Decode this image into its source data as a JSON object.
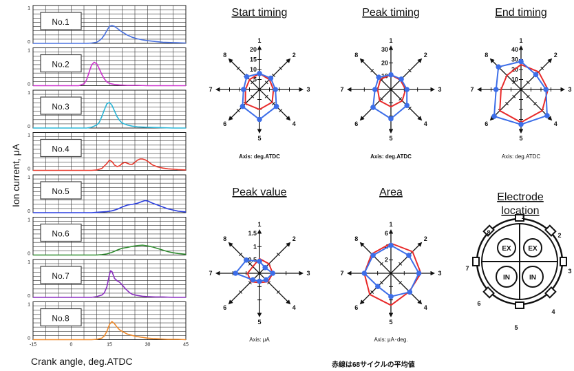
{
  "left_panel": {
    "ylabel": "Ion current, μA",
    "xlabel": "Crank angle, deg.ATDC",
    "x_ticks": [
      "-15",
      "0",
      "15",
      "30",
      "45"
    ],
    "y_tick_top": "1",
    "y_tick_bottom": "0"
  },
  "chart_data": [
    {
      "type": "line",
      "title": "Ion current traces",
      "xlim": [
        -15,
        45
      ],
      "ylim": [
        0,
        1
      ],
      "series": [
        {
          "name": "No.1",
          "color": "#4a72e0",
          "x": [
            -15,
            6,
            8,
            10,
            11,
            12,
            13,
            14,
            15,
            16,
            17,
            18,
            19,
            20,
            22,
            24,
            26,
            28,
            30,
            33,
            36,
            40,
            45
          ],
          "y": [
            0,
            0,
            0.01,
            0.03,
            0.07,
            0.13,
            0.22,
            0.34,
            0.45,
            0.47,
            0.45,
            0.4,
            0.35,
            0.3,
            0.22,
            0.16,
            0.12,
            0.09,
            0.07,
            0.05,
            0.03,
            0.02,
            0.01
          ]
        },
        {
          "name": "No.2",
          "color": "#cc33cc",
          "x": [
            -15,
            3,
            5,
            6,
            7,
            8,
            9,
            10,
            11,
            12,
            13,
            14,
            15,
            17,
            19,
            22,
            26,
            30,
            45
          ],
          "y": [
            0,
            0,
            0.05,
            0.15,
            0.35,
            0.55,
            0.62,
            0.58,
            0.45,
            0.3,
            0.18,
            0.1,
            0.06,
            0.03,
            0.02,
            0.01,
            0.01,
            0,
            0
          ]
        },
        {
          "name": "No.3",
          "color": "#2ab5d6",
          "x": [
            -15,
            6,
            8,
            10,
            11,
            12,
            13,
            14,
            15,
            16,
            17,
            18,
            19,
            20,
            22,
            24,
            26,
            30,
            35,
            40,
            45
          ],
          "y": [
            0,
            0,
            0.02,
            0.08,
            0.15,
            0.3,
            0.48,
            0.64,
            0.68,
            0.6,
            0.45,
            0.3,
            0.2,
            0.13,
            0.08,
            0.05,
            0.03,
            0.02,
            0.01,
            0,
            0
          ]
        },
        {
          "name": "No.4",
          "color": "#e83a2e",
          "x": [
            -15,
            8,
            10,
            12,
            14,
            15,
            16,
            17,
            18,
            19,
            20,
            21,
            22,
            23,
            24,
            25,
            26,
            27,
            28,
            29,
            30,
            31,
            32,
            34,
            36,
            38,
            40,
            42,
            45
          ],
          "y": [
            0,
            0,
            0.01,
            0.05,
            0.18,
            0.27,
            0.23,
            0.14,
            0.1,
            0.12,
            0.18,
            0.21,
            0.19,
            0.16,
            0.16,
            0.21,
            0.27,
            0.3,
            0.3,
            0.28,
            0.24,
            0.19,
            0.14,
            0.09,
            0.06,
            0.04,
            0.03,
            0.02,
            0.01
          ]
        },
        {
          "name": "No.5",
          "color": "#2a3ee0",
          "x": [
            -15,
            8,
            10,
            12,
            14,
            16,
            18,
            20,
            22,
            24,
            26,
            28,
            29,
            30,
            31,
            32,
            34,
            36,
            38,
            40,
            42,
            45
          ],
          "y": [
            0,
            0,
            0.01,
            0.02,
            0.03,
            0.05,
            0.09,
            0.15,
            0.2,
            0.22,
            0.25,
            0.3,
            0.32,
            0.31,
            0.28,
            0.25,
            0.2,
            0.15,
            0.1,
            0.07,
            0.04,
            0.02
          ]
        },
        {
          "name": "No.6",
          "color": "#2e8b2e",
          "x": [
            -15,
            10,
            12,
            14,
            16,
            18,
            20,
            22,
            24,
            26,
            28,
            30,
            32,
            34,
            36,
            38,
            40,
            42,
            45
          ],
          "y": [
            0,
            0,
            0.01,
            0.03,
            0.07,
            0.13,
            0.18,
            0.2,
            0.23,
            0.25,
            0.26,
            0.24,
            0.21,
            0.17,
            0.13,
            0.09,
            0.06,
            0.04,
            0.02
          ]
        },
        {
          "name": "No.7",
          "color": "#8a2ec0",
          "x": [
            -15,
            8,
            10,
            12,
            13,
            14,
            15,
            15.5,
            16,
            17,
            18,
            19,
            20,
            21,
            22,
            23,
            24,
            26,
            28,
            30,
            33,
            36,
            40,
            45
          ],
          "y": [
            0,
            0,
            0.02,
            0.06,
            0.12,
            0.28,
            0.6,
            0.7,
            0.68,
            0.5,
            0.44,
            0.4,
            0.33,
            0.25,
            0.18,
            0.12,
            0.08,
            0.05,
            0.03,
            0.02,
            0.01,
            0.01,
            0,
            0
          ]
        },
        {
          "name": "No.8",
          "color": "#f08a2a",
          "x": [
            -15,
            8,
            10,
            12,
            13,
            14,
            15,
            16,
            17,
            18,
            19,
            20,
            22,
            24,
            26,
            28,
            30,
            32,
            35,
            38,
            42,
            45
          ],
          "y": [
            0,
            0,
            0.01,
            0.04,
            0.1,
            0.22,
            0.4,
            0.48,
            0.42,
            0.33,
            0.26,
            0.22,
            0.15,
            0.11,
            0.08,
            0.06,
            0.04,
            0.03,
            0.02,
            0.01,
            0.01,
            0
          ]
        }
      ]
    },
    {
      "type": "radar",
      "title": "Start timing",
      "axis_note": "Axis: deg.ATDC",
      "note_bold": true,
      "categories": [
        "1",
        "2",
        "3",
        "4",
        "5",
        "6",
        "7",
        "8"
      ],
      "rmax": 20,
      "ticks": [
        {
          "v": 5,
          "label": "5"
        },
        {
          "v": 10,
          "label": "10"
        },
        {
          "v": 15,
          "label": "15"
        },
        {
          "v": 20,
          "label": "20"
        }
      ],
      "series": [
        {
          "color": "#3d6ee8",
          "values": [
            8,
            8,
            8,
            12,
            15,
            12,
            8,
            9
          ]
        },
        {
          "color": "#e82a2a",
          "values": [
            8,
            7,
            7,
            9,
            10,
            10,
            7,
            7
          ]
        }
      ]
    },
    {
      "type": "radar",
      "title": "Peak timing",
      "axis_note": "Axis: deg.ATDC",
      "note_bold": true,
      "categories": [
        "1",
        "2",
        "3",
        "4",
        "5",
        "6",
        "7",
        "8"
      ],
      "rmax": 30,
      "ticks": [
        {
          "v": 10,
          "label": "10"
        },
        {
          "v": 20,
          "label": "20"
        },
        {
          "v": 30,
          "label": "30"
        }
      ],
      "series": [
        {
          "color": "#3d6ee8",
          "values": [
            11,
            11,
            12,
            17,
            22,
            19,
            12,
            13
          ]
        },
        {
          "color": "#e82a2a",
          "values": [
            11,
            10,
            11,
            12,
            13,
            12,
            10,
            11
          ]
        }
      ]
    },
    {
      "type": "radar",
      "title": "End timing",
      "axis_note": "Axis: deg.ATDC",
      "note_bold": false,
      "categories": [
        "1",
        "2",
        "3",
        "4",
        "5",
        "6",
        "7",
        "8"
      ],
      "rmax": 40,
      "ticks": [
        {
          "v": 10,
          "label": "10"
        },
        {
          "v": 20,
          "label": "20"
        },
        {
          "v": 30,
          "label": "30"
        },
        {
          "v": 40,
          "label": "40"
        }
      ],
      "series": [
        {
          "color": "#3d6ee8",
          "values": [
            28,
            21,
            25,
            37,
            35,
            38,
            25,
            32
          ]
        },
        {
          "color": "#e82a2a",
          "values": [
            25,
            25,
            27,
            30,
            33,
            30,
            20,
            20
          ]
        }
      ]
    },
    {
      "type": "radar",
      "title": "Peak value",
      "axis_note": "Axis: μA",
      "note_bold": false,
      "categories": [
        "1",
        "2",
        "3",
        "4",
        "5",
        "6",
        "7",
        "8"
      ],
      "rmax": 1.5,
      "ticks": [
        {
          "v": 0.5,
          "label": "0.5"
        },
        {
          "v": 1.0,
          "label": "1"
        },
        {
          "v": 1.5,
          "label": "1.5"
        }
      ],
      "series": [
        {
          "color": "#3d6ee8",
          "values": [
            0.45,
            0.3,
            0.5,
            0.35,
            0.3,
            0.35,
            0.9,
            0.7
          ]
        },
        {
          "color": "#e82a2a",
          "values": [
            0.55,
            0.5,
            0.5,
            0.45,
            0.35,
            0.45,
            0.45,
            0.35
          ]
        }
      ]
    },
    {
      "type": "radar",
      "title": "Area",
      "axis_note": "Axis: μA･deg.",
      "note_bold": false,
      "categories": [
        "1",
        "2",
        "3",
        "4",
        "5",
        "6",
        "7",
        "8"
      ],
      "rmax": 6,
      "ticks": [
        {
          "v": 2,
          "label": "2"
        },
        {
          "v": 4,
          "label": "4"
        },
        {
          "v": 6,
          "label": "6"
        }
      ],
      "series": [
        {
          "color": "#3d6ee8",
          "values": [
            4.2,
            3.8,
            4.2,
            4.0,
            3.5,
            2.8,
            4.0,
            3.8
          ]
        },
        {
          "color": "#e82a2a",
          "values": [
            4.5,
            4.6,
            4.5,
            3.9,
            4.8,
            4.5,
            4.0,
            4.1
          ]
        }
      ]
    }
  ],
  "electrode": {
    "title_line1": "Electrode",
    "title_line2": "location",
    "numbers": [
      "1",
      "2",
      "3",
      "4",
      "5",
      "6",
      "7",
      "8"
    ],
    "valves": [
      "EX",
      "EX",
      "IN",
      "IN"
    ]
  },
  "footnote": "赤線は68サイクルの平均値"
}
